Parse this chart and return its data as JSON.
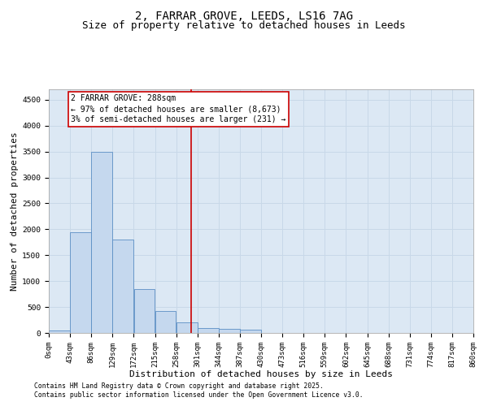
{
  "title1": "2, FARRAR GROVE, LEEDS, LS16 7AG",
  "title2": "Size of property relative to detached houses in Leeds",
  "xlabel": "Distribution of detached houses by size in Leeds",
  "ylabel": "Number of detached properties",
  "bar_values": [
    50,
    1950,
    3500,
    1800,
    850,
    430,
    200,
    100,
    80,
    65,
    0,
    0,
    0,
    0,
    0,
    0,
    0,
    0,
    0,
    0
  ],
  "bin_edges": [
    0,
    43,
    86,
    129,
    172,
    215,
    258,
    301,
    344,
    387,
    430,
    473,
    516,
    559,
    602,
    645,
    688,
    731,
    774,
    817,
    860
  ],
  "tick_labels": [
    "0sqm",
    "43sqm",
    "86sqm",
    "129sqm",
    "172sqm",
    "215sqm",
    "258sqm",
    "301sqm",
    "344sqm",
    "387sqm",
    "430sqm",
    "473sqm",
    "516sqm",
    "559sqm",
    "602sqm",
    "645sqm",
    "688sqm",
    "731sqm",
    "774sqm",
    "817sqm",
    "860sqm"
  ],
  "bar_color": "#c5d8ee",
  "bar_edge_color": "#5b8ec4",
  "vline_x": 288,
  "vline_color": "#cc0000",
  "annotation_text": "2 FARRAR GROVE: 288sqm\n← 97% of detached houses are smaller (8,673)\n3% of semi-detached houses are larger (231) →",
  "annotation_box_color": "#cc0000",
  "ylim": [
    0,
    4700
  ],
  "yticks": [
    0,
    500,
    1000,
    1500,
    2000,
    2500,
    3000,
    3500,
    4000,
    4500
  ],
  "grid_color": "#c8d8e8",
  "background_color": "#dce8f4",
  "footnote1": "Contains HM Land Registry data © Crown copyright and database right 2025.",
  "footnote2": "Contains public sector information licensed under the Open Government Licence v3.0.",
  "title1_fontsize": 10,
  "title2_fontsize": 9,
  "tick_fontsize": 6.5,
  "label_fontsize": 8,
  "annot_fontsize": 7,
  "footnote_fontsize": 5.8
}
